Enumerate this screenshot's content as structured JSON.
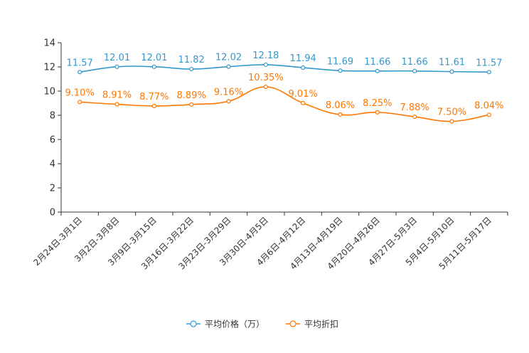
{
  "chart_data": {
    "type": "line",
    "categories": [
      "2月24日-3月1日",
      "3月2日-3月8日",
      "3月9日-3月15日",
      "3月16日-3月22日",
      "3月23日-3月29日",
      "3月30日-4月5日",
      "4月6日-4月12日",
      "4月13日-4月19日",
      "4月20日-4月26日",
      "4月27日-5月3日",
      "5月4日-5月10日",
      "5月11日-5月17日"
    ],
    "series": [
      {
        "name": "平均价格（万）",
        "color": "#3399cc",
        "values": [
          11.57,
          12.01,
          12.01,
          11.82,
          12.02,
          12.18,
          11.94,
          11.69,
          11.66,
          11.66,
          11.61,
          11.57
        ],
        "labels": [
          "11.57",
          "12.01",
          "12.01",
          "11.82",
          "12.02",
          "12.18",
          "11.94",
          "11.69",
          "11.66",
          "11.66",
          "11.61",
          "11.57"
        ]
      },
      {
        "name": "平均折扣",
        "color": "#ff7700",
        "values": [
          9.1,
          8.91,
          8.77,
          8.89,
          9.16,
          10.35,
          9.01,
          8.06,
          8.25,
          7.88,
          7.5,
          8.04
        ],
        "labels": [
          "9.10%",
          "8.91%",
          "8.77%",
          "8.89%",
          "9.16%",
          "10.35%",
          "9.01%",
          "8.06%",
          "8.25%",
          "7.88%",
          "7.50%",
          "8.04%"
        ]
      }
    ],
    "yticks": [
      0,
      2,
      4,
      6,
      8,
      10,
      12,
      14
    ],
    "ylim": [
      0,
      14
    ],
    "grid": false,
    "legend": "bottom-center"
  }
}
